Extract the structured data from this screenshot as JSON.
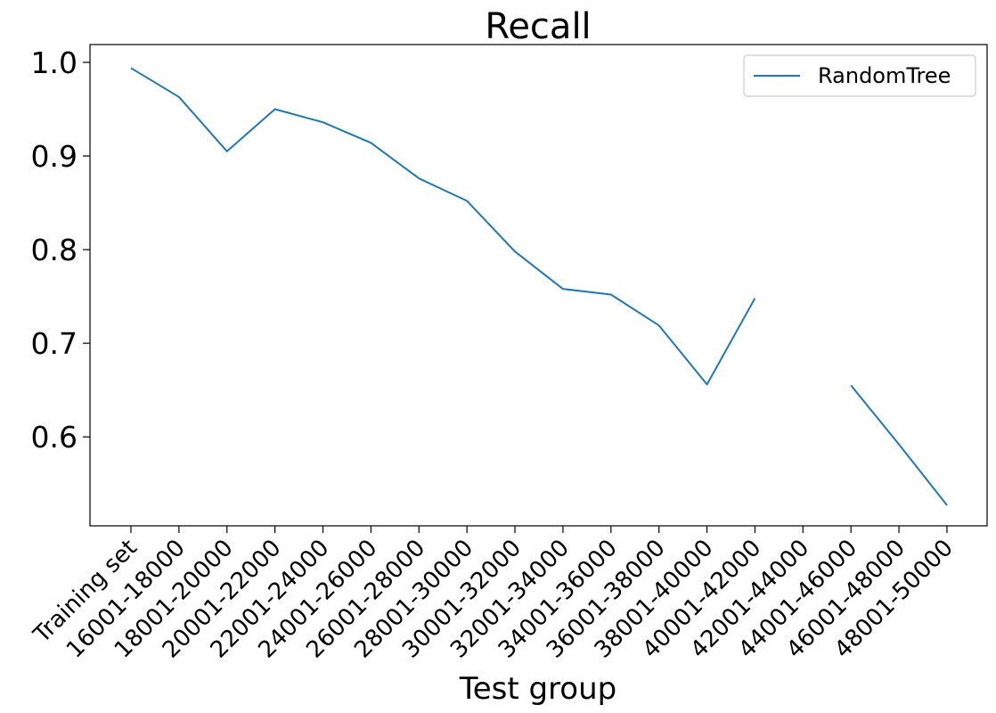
{
  "chart_data": {
    "type": "line",
    "title": "Recall",
    "xlabel": "Test group",
    "ylabel": "",
    "categories": [
      "Training set",
      "16001-18000",
      "18001-20000",
      "20001-22000",
      "22001-24000",
      "24001-26000",
      "26001-28000",
      "28001-30000",
      "30001-32000",
      "32001-34000",
      "34001-36000",
      "36001-38000",
      "38001-40000",
      "40001-42000",
      "42001-44000",
      "44001-46000",
      "46001-48000",
      "48001-50000"
    ],
    "yticks": [
      "0.6",
      "0.7",
      "0.8",
      "0.9",
      "1.0"
    ],
    "ylim": [
      0.505,
      1.019
    ],
    "grid": false,
    "legend_position": "top-right",
    "series": [
      {
        "name": "RandomTree",
        "color": "#1f77b4",
        "values": [
          0.994,
          0.963,
          0.905,
          0.95,
          0.936,
          0.914,
          0.876,
          0.852,
          0.798,
          0.758,
          0.752,
          0.719,
          0.656,
          0.748,
          null,
          0.655,
          0.592,
          0.527
        ]
      }
    ]
  }
}
